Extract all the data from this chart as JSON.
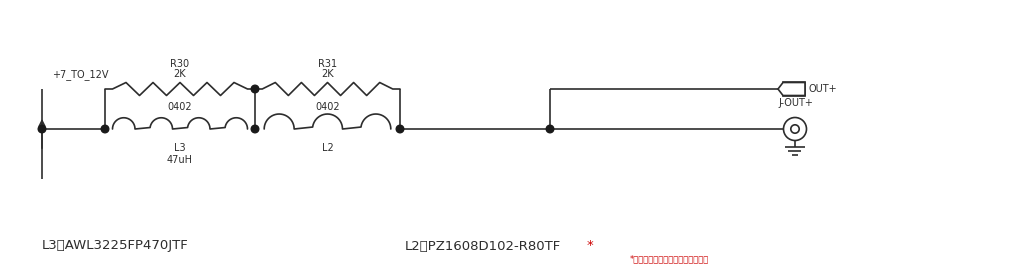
{
  "bg_color": "#ffffff",
  "line_color": "#2d2d2d",
  "dot_color": "#1a1a1a",
  "text_color": "#2d2d2d",
  "red_color": "#cc0000",
  "figsize": [
    10.15,
    2.67
  ],
  "dpi": 100,
  "label_L3": "L3：AWL3225FP470JTF",
  "label_L2_text": "L2：PZ1608D102-R80TF",
  "label_star": "*",
  "label_note": "*二級濾波中的磁珠是非汽車電子品",
  "label_vin": "+7_TO_12V",
  "label_R30": "R30",
  "label_R30_val": "2K",
  "label_R30_pkg": "0402",
  "label_R31": "R31",
  "label_R31_val": "2K",
  "label_R31_pkg": "0402",
  "label_L3_ref": "L3",
  "label_L3_val": "47uH",
  "label_L2_ref": "L2",
  "label_OUT": "OUT+",
  "label_JOUT": "J-OUT+"
}
